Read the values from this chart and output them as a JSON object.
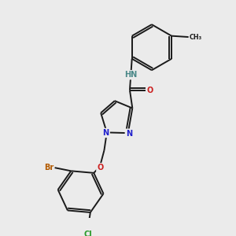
{
  "background_color": "#ebebeb",
  "bond_color": "#1a1a1a",
  "atom_colors": {
    "N": "#2020cc",
    "O": "#cc2020",
    "Br": "#b35a00",
    "Cl": "#2a9a2a",
    "H": "#4a8888",
    "C": "#1a1a1a"
  },
  "lw": 1.4,
  "fs": 7.0,
  "fs_small": 6.2
}
